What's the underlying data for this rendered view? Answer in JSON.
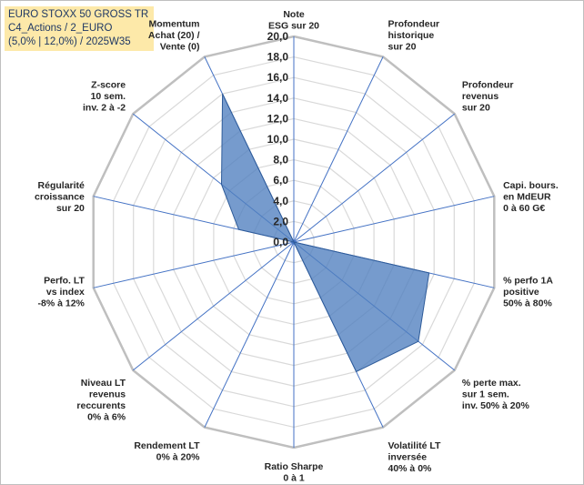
{
  "title_box": {
    "line1": "EURO STOXX 50 GROSS TR",
    "line2": "C4_Actions / 2_EURO",
    "line3": "(5,0% | 12,0%) / 2025W35"
  },
  "colors": {
    "fill": "#4f7fbf",
    "fill_opacity": 0.78,
    "stroke": "#2e5b99",
    "spoke": "#4472c4",
    "grid": "#d9d9d9",
    "outer": "#bfbfbf"
  },
  "chart_data": {
    "type": "radar",
    "rmax": 20,
    "tick_step": 2,
    "tick_labels": [
      "0,0",
      "2,0",
      "4,0",
      "6,0",
      "8,0",
      "10,0",
      "12,0",
      "14,0",
      "16,0",
      "18,0",
      "20,0"
    ],
    "grid": true,
    "axes": [
      {
        "label": [
          "Note",
          "ESG sur 20"
        ],
        "value": 0.0
      },
      {
        "label": [
          "Profondeur",
          "historique",
          "sur 20"
        ],
        "value": 0.0
      },
      {
        "label": [
          "Profondeur",
          "revenus",
          "sur 20"
        ],
        "value": 0.0
      },
      {
        "label": [
          "Capi. bours.",
          "en MdEUR",
          "0 à 60 G€"
        ],
        "value": 0.0
      },
      {
        "label": [
          "% perfo 1A",
          "positive",
          "50% à 80%"
        ],
        "value": 13.5
      },
      {
        "label": [
          "% perte max.",
          "sur 1 sem.",
          "inv. 50% à 20%"
        ],
        "value": 15.5
      },
      {
        "label": [
          "Volatilité LT",
          "inversée",
          "40% à 0%"
        ],
        "value": 14.0
      },
      {
        "label": [
          "Ratio Sharpe",
          "0 à 1"
        ],
        "value": 0.0
      },
      {
        "label": [
          "Rendement LT",
          "0% à 20%"
        ],
        "value": 0.0
      },
      {
        "label": [
          "Niveau LT",
          "revenus",
          "reccurents",
          "0% à 6%"
        ],
        "value": 0.0
      },
      {
        "label": [
          "Perfo. LT",
          "vs index",
          "-8% à 12%"
        ],
        "value": 0.0
      },
      {
        "label": [
          "Régularité",
          "croissance",
          "sur 20"
        ],
        "value": 5.5
      },
      {
        "label": [
          "Z-score",
          "10 sem.",
          "inv. 2 à -2"
        ],
        "value": 9.0
      },
      {
        "label": [
          "Momentum",
          "Achat (20) /",
          "Vente (0)"
        ],
        "value": 16.0
      }
    ]
  }
}
